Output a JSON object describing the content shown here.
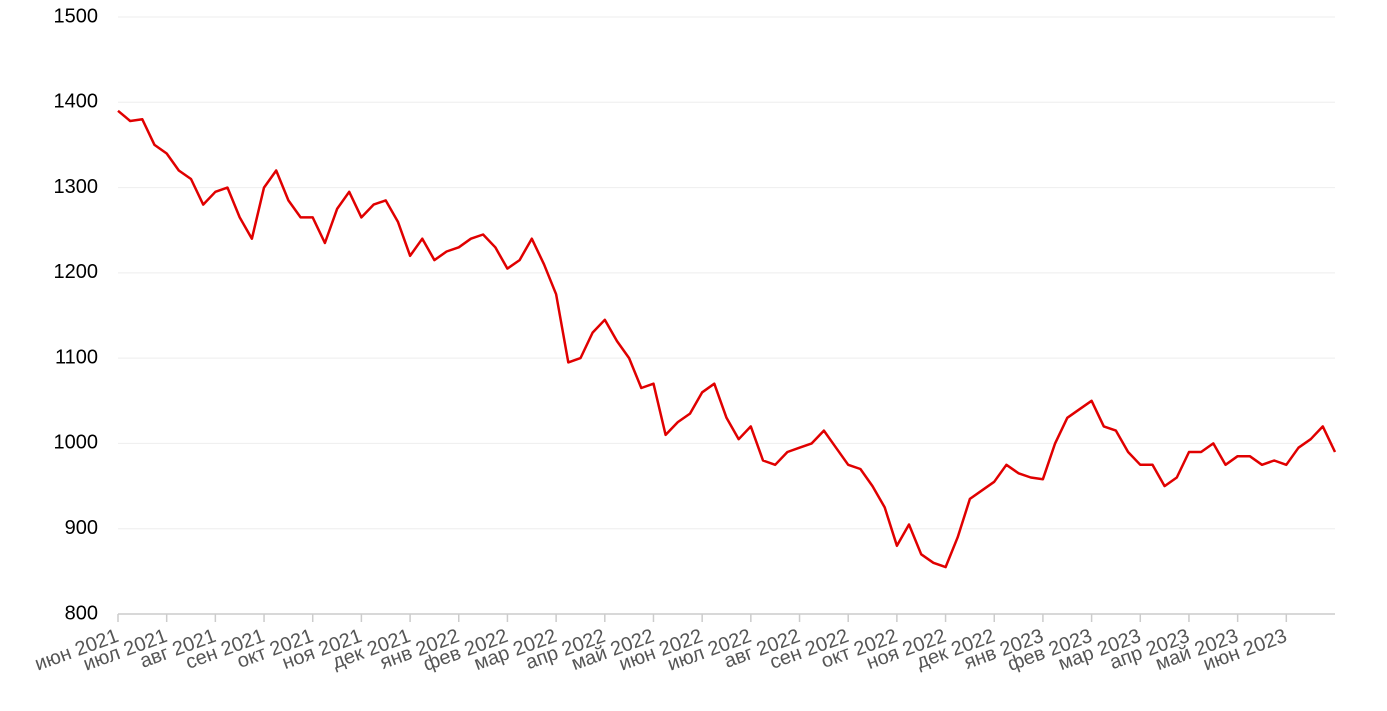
{
  "chart_data": {
    "type": "line",
    "categories": [
      "июн 2021",
      null,
      null,
      null,
      "июл 2021",
      null,
      null,
      null,
      "авг 2021",
      null,
      null,
      null,
      "сен 2021",
      null,
      null,
      null,
      "окт 2021",
      null,
      null,
      null,
      "ноя 2021",
      null,
      null,
      null,
      "дек 2021",
      null,
      null,
      null,
      "янв 2022",
      null,
      null,
      null,
      "фев 2022",
      null,
      null,
      null,
      "мар 2022",
      null,
      null,
      null,
      "апр 2022",
      null,
      null,
      null,
      "май 2022",
      null,
      null,
      null,
      "июн 2022",
      null,
      null,
      null,
      "июл 2022",
      null,
      null,
      null,
      "авг 2022",
      null,
      null,
      null,
      "сен 2022",
      null,
      null,
      null,
      "окт 2022",
      null,
      null,
      null,
      "ноя 2022",
      null,
      null,
      null,
      "дек 2022",
      null,
      null,
      null,
      "янв 2023",
      null,
      null,
      null,
      "фев 2023",
      null,
      null,
      null,
      "мар 2023",
      null,
      null,
      null,
      "апр 2023",
      null,
      null,
      null,
      "май 2023",
      null,
      null,
      null,
      "июн 2023",
      null,
      null,
      null,
      null
    ],
    "series": [
      {
        "color": "#e00000",
        "values": [
          1390,
          1378,
          1380,
          1350,
          1340,
          1320,
          1310,
          1280,
          1295,
          1300,
          1265,
          1240,
          1300,
          1320,
          1285,
          1265,
          1265,
          1235,
          1275,
          1295,
          1265,
          1280,
          1285,
          1260,
          1220,
          1240,
          1215,
          1225,
          1230,
          1240,
          1245,
          1230,
          1205,
          1215,
          1240,
          1210,
          1175,
          1095,
          1100,
          1130,
          1145,
          1120,
          1100,
          1065,
          1070,
          1010,
          1025,
          1035,
          1060,
          1070,
          1030,
          1005,
          1020,
          980,
          975,
          990,
          995,
          1000,
          1015,
          995,
          975,
          970,
          950,
          925,
          880,
          905,
          870,
          860,
          855,
          890,
          935,
          945,
          955,
          975,
          965,
          960,
          958,
          1000,
          1030,
          1040,
          1050,
          1020,
          1015,
          990,
          975,
          975,
          950,
          960,
          990,
          990,
          1000,
          975,
          985,
          985,
          975,
          980,
          975,
          995,
          1005,
          1020,
          990
        ]
      }
    ],
    "ylim": [
      800,
      1500
    ],
    "yticks": [
      800,
      900,
      1000,
      1100,
      1200,
      1300,
      1400,
      1500
    ],
    "grid": true
  }
}
